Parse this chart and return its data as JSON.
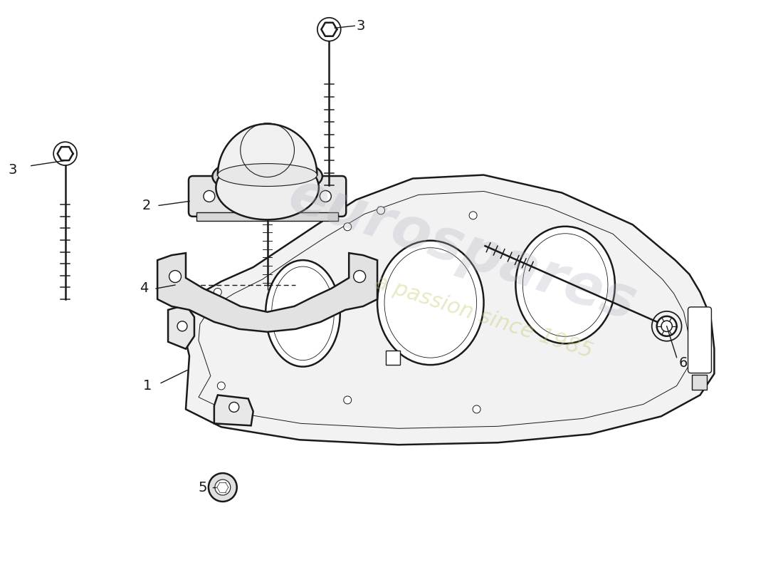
{
  "background_color": "#ffffff",
  "line_color": "#1a1a1a",
  "lw_main": 1.8,
  "lw_thin": 1.0,
  "label_fontsize": 14,
  "watermark1": "eurospares",
  "watermark2": "a passion since 1985",
  "parts": [
    1,
    2,
    3,
    4,
    5,
    6
  ]
}
